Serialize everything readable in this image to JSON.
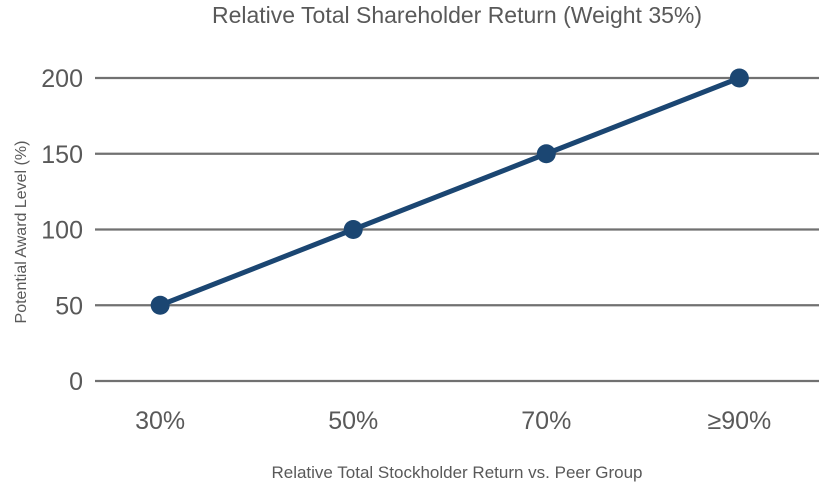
{
  "chart_data": {
    "type": "line",
    "title": "Relative Total Shareholder Return (Weight 35%)",
    "xlabel": "Relative Total Stockholder Return vs. Peer Group",
    "ylabel": "Potential Award Level (%)",
    "categories": [
      "30%",
      "50%",
      "70%",
      "≥90%"
    ],
    "values": [
      50,
      100,
      150,
      200
    ],
    "y_ticks": [
      0,
      50,
      100,
      150,
      200
    ],
    "ylim": [
      0,
      200
    ],
    "grid": "horizontal-only",
    "legend": "none",
    "marker": "filled-circle",
    "colors": {
      "line": "#1b4672",
      "marker": "#1b4672",
      "grid": "#717171",
      "text": "#595959",
      "background": "#ffffff"
    }
  }
}
